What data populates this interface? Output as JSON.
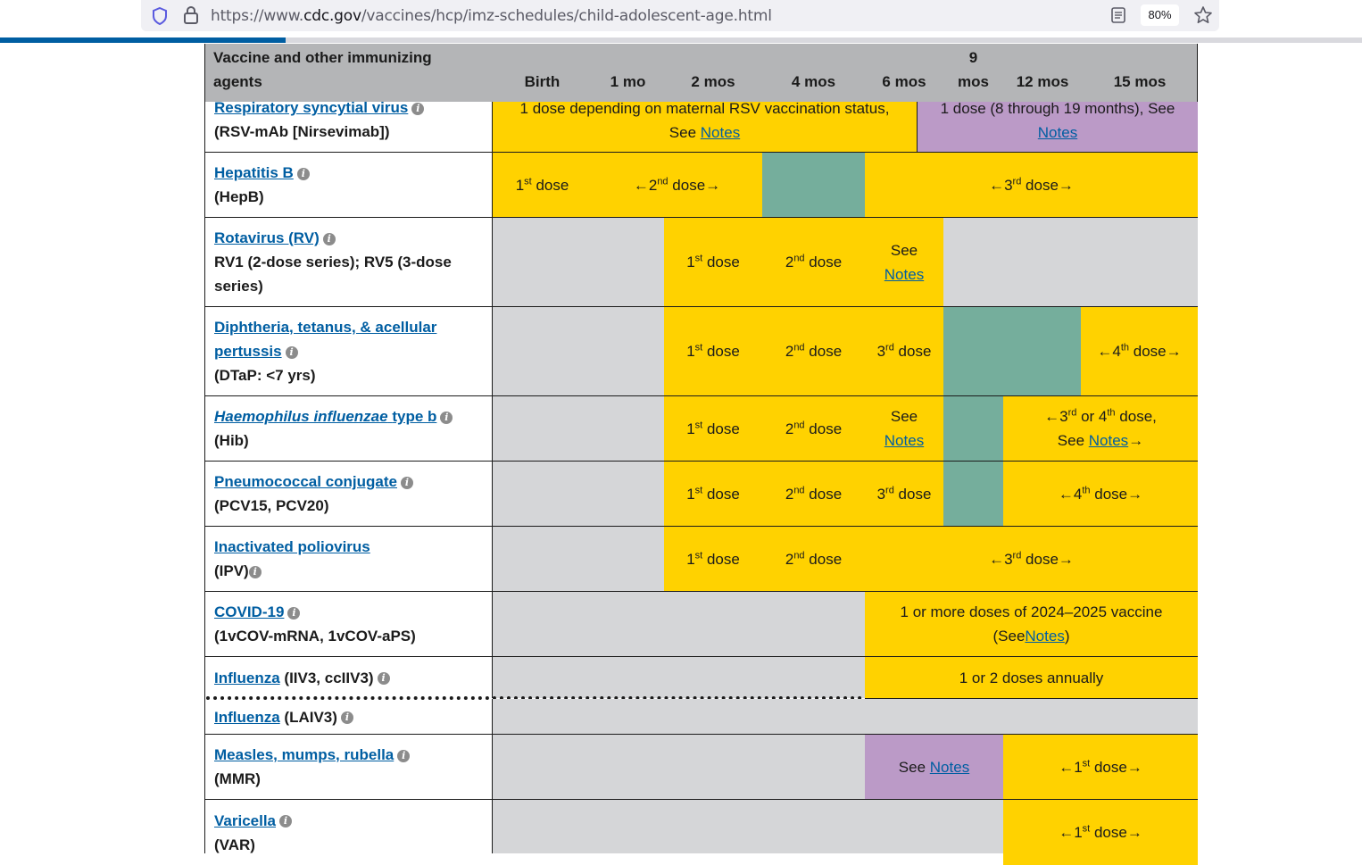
{
  "browser": {
    "url_prefix": "https://www.",
    "url_host": "cdc.gov",
    "url_path": "/vaccines/hcp/imz-schedules/child-adolescent-age.html",
    "zoom": "80%",
    "load_progress_percent": 21
  },
  "header": {
    "agent_col": "Vaccine and other immunizing agents",
    "ages": [
      "Birth",
      "1 mo",
      "2 mos",
      "4 mos",
      "6 mos",
      "9 mos",
      "12 mos",
      "15 mos"
    ]
  },
  "rows": {
    "rsv": {
      "link": "Respiratory syncytial virus",
      "sub": "(RSV-mAb [Nirsevimab])",
      "c1_text": "1 dose depending on maternal RSV vaccination status, See",
      "c2_text": "1 dose (8 through 19 months), See"
    },
    "hepb": {
      "link": "Hepatitis B",
      "sub": "(HepB)"
    },
    "rv": {
      "link": "Rotavirus (RV)",
      "sub": "RV1 (2-dose series); RV5 (3-dose series)"
    },
    "dtap": {
      "link": "Diphtheria, tetanus, & acellular pertussis",
      "sub": "(DTaP: <7 yrs)"
    },
    "hib": {
      "link_italic": "Haemophilus influenzae",
      "link": "type b",
      "sub": "(Hib)",
      "c_dose": "or 4",
      "c_dose2": "dose,",
      "c_see": "See"
    },
    "pcv": {
      "link": "Pneumococcal conjugate",
      "sub": "(PCV15, PCV20)"
    },
    "ipv": {
      "link": "Inactivated poliovirus",
      "sub": "(IPV)"
    },
    "covid": {
      "link": "COVID-19",
      "sub": "(1vCOV-mRNA, 1vCOV-aPS)",
      "c_text": "1 or more doses of 2024–2025 vaccine",
      "c_open": "(See",
      "c_close": ")"
    },
    "flu1": {
      "link": "Influenza",
      "sub": "(IIV3, ccIIV3)",
      "c_text": "1 or 2 doses annually"
    },
    "flu2": {
      "link": "Influenza",
      "sub": "(LAIV3)"
    },
    "mmr": {
      "link": "Measles, mumps, rubella",
      "sub": "(MMR)",
      "c_see": "See"
    },
    "var": {
      "link": "Varicella",
      "sub": "(VAR)"
    }
  },
  "common": {
    "notes": "Notes",
    "dose": "dose",
    "see": "See",
    "st": "st",
    "nd": "nd",
    "rd": "rd",
    "th": "th",
    "n1": "1",
    "n2": "2",
    "n3": "3",
    "n4": "4",
    "la": "←",
    "ra": "→",
    "info": "i"
  },
  "colors": {
    "yellow": "#ffd200",
    "green": "#75ae9c",
    "purple": "#bb9ac7",
    "gray": "#d5d6d8",
    "header": "#b4b5b7",
    "link": "#005ea2"
  }
}
